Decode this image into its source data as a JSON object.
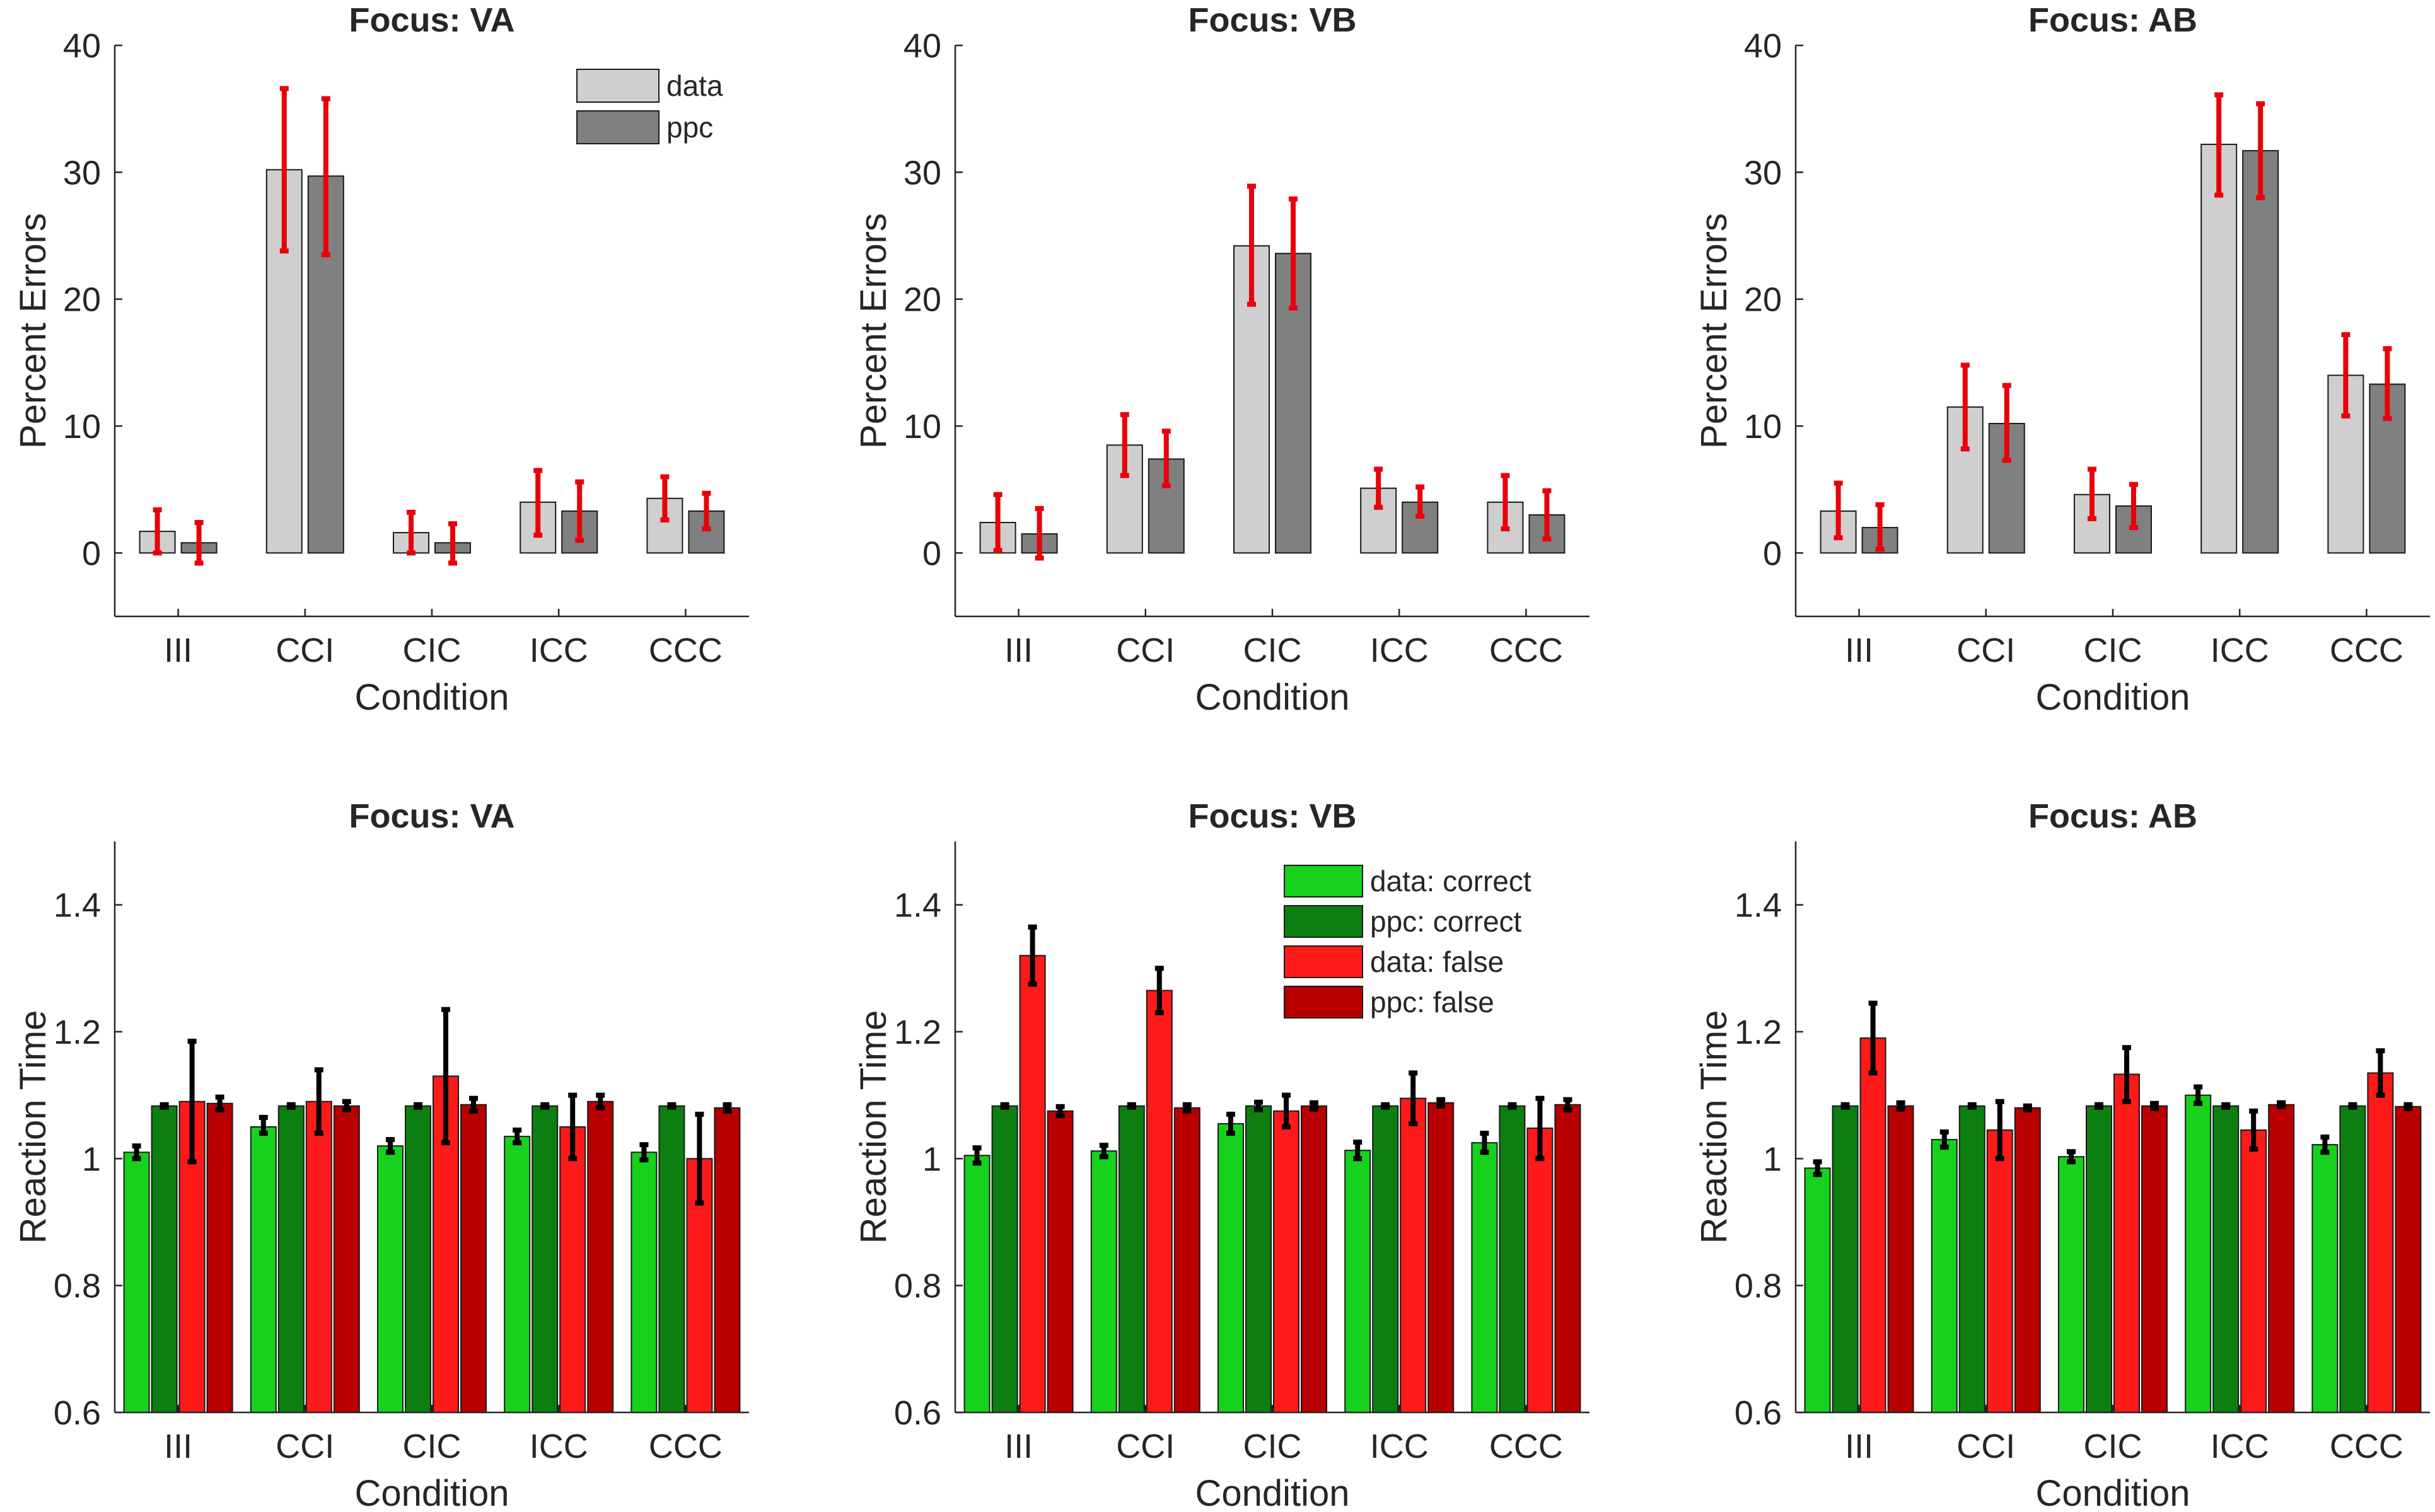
{
  "chart_data": [
    {
      "type": "bar",
      "title": "Focus: VA",
      "xlabel": "Condition",
      "ylabel": "Percent Errors",
      "ylim": [
        -5,
        40
      ],
      "yticks": [
        0,
        10,
        20,
        30,
        40
      ],
      "categories": [
        "III",
        "CCI",
        "CIC",
        "ICC",
        "CCC"
      ],
      "colors": [
        "#cfcfcf",
        "#808080"
      ],
      "error_color": "#e8000b",
      "legend": [
        "data",
        "ppc"
      ],
      "legend_position": "top-right",
      "series": [
        {
          "name": "data",
          "values": [
            1.7,
            30.2,
            1.6,
            4.0,
            4.3
          ],
          "err_low": [
            0.0,
            23.8,
            0.0,
            1.4,
            2.6
          ],
          "err_high": [
            3.4,
            36.6,
            3.2,
            6.5,
            6.0
          ]
        },
        {
          "name": "ppc",
          "values": [
            0.8,
            29.7,
            0.8,
            3.3,
            3.3
          ],
          "err_low": [
            -0.8,
            23.5,
            -0.8,
            1.0,
            1.9
          ],
          "err_high": [
            2.4,
            35.8,
            2.3,
            5.6,
            4.7
          ]
        }
      ]
    },
    {
      "type": "bar",
      "title": "Focus: VB",
      "xlabel": "Condition",
      "ylabel": "Percent Errors",
      "ylim": [
        -5,
        40
      ],
      "yticks": [
        0,
        10,
        20,
        30,
        40
      ],
      "categories": [
        "III",
        "CCI",
        "CIC",
        "ICC",
        "CCC"
      ],
      "colors": [
        "#cfcfcf",
        "#808080"
      ],
      "error_color": "#e8000b",
      "series": [
        {
          "name": "data",
          "values": [
            2.4,
            8.5,
            24.2,
            5.1,
            4.0
          ],
          "err_low": [
            0.2,
            6.1,
            19.6,
            3.6,
            1.9
          ],
          "err_high": [
            4.6,
            10.9,
            28.9,
            6.6,
            6.1
          ]
        },
        {
          "name": "ppc",
          "values": [
            1.5,
            7.4,
            23.6,
            4.0,
            3.0
          ],
          "err_low": [
            -0.4,
            5.3,
            19.3,
            2.9,
            1.1
          ],
          "err_high": [
            3.5,
            9.6,
            27.9,
            5.2,
            4.9
          ]
        }
      ]
    },
    {
      "type": "bar",
      "title": "Focus: AB",
      "xlabel": "Condition",
      "ylabel": "Percent Errors",
      "ylim": [
        -5,
        40
      ],
      "yticks": [
        0,
        10,
        20,
        30,
        40
      ],
      "categories": [
        "III",
        "CCI",
        "CIC",
        "ICC",
        "CCC"
      ],
      "colors": [
        "#cfcfcf",
        "#808080"
      ],
      "error_color": "#e8000b",
      "series": [
        {
          "name": "data",
          "values": [
            3.3,
            11.5,
            4.6,
            32.2,
            14.0
          ],
          "err_low": [
            1.2,
            8.2,
            2.7,
            28.2,
            10.8
          ],
          "err_high": [
            5.5,
            14.8,
            6.6,
            36.1,
            17.2
          ]
        },
        {
          "name": "ppc",
          "values": [
            2.0,
            10.2,
            3.7,
            31.7,
            13.3
          ],
          "err_low": [
            0.3,
            7.3,
            2.0,
            28.0,
            10.6
          ],
          "err_high": [
            3.8,
            13.2,
            5.4,
            35.4,
            16.1
          ]
        }
      ]
    },
    {
      "type": "bar",
      "title": "Focus: VA",
      "xlabel": "Condition",
      "ylabel": "Reaction Time",
      "ylim": [
        0.6,
        1.5
      ],
      "yticks": [
        0.6,
        0.8,
        1,
        1.2,
        1.4
      ],
      "categories": [
        "III",
        "CCI",
        "CIC",
        "ICC",
        "CCC"
      ],
      "colors": [
        "#16d21d",
        "#0d7f10",
        "#ff1a1a",
        "#b80000"
      ],
      "error_color": "#000000",
      "series": [
        {
          "name": "data: correct",
          "values": [
            1.01,
            1.05,
            1.02,
            1.035,
            1.01
          ],
          "err_low": [
            1.0,
            1.04,
            1.01,
            1.025,
            0.998
          ],
          "err_high": [
            1.02,
            1.065,
            1.03,
            1.045,
            1.022
          ]
        },
        {
          "name": "ppc: correct",
          "values": [
            1.083,
            1.083,
            1.083,
            1.083,
            1.083
          ],
          "err_low": [
            1.081,
            1.081,
            1.081,
            1.081,
            1.081
          ],
          "err_high": [
            1.085,
            1.085,
            1.085,
            1.085,
            1.085
          ]
        },
        {
          "name": "data: false",
          "values": [
            1.09,
            1.09,
            1.13,
            1.05,
            1.0
          ],
          "err_low": [
            0.995,
            1.04,
            1.025,
            1.0,
            0.93
          ],
          "err_high": [
            1.185,
            1.14,
            1.235,
            1.1,
            1.07
          ]
        },
        {
          "name": "ppc: false",
          "values": [
            1.087,
            1.083,
            1.085,
            1.09,
            1.08
          ],
          "err_low": [
            1.077,
            1.077,
            1.075,
            1.08,
            1.075
          ],
          "err_high": [
            1.097,
            1.09,
            1.095,
            1.1,
            1.085
          ]
        }
      ]
    },
    {
      "type": "bar",
      "title": "Focus: VB",
      "xlabel": "Condition",
      "ylabel": "Reaction Time",
      "ylim": [
        0.6,
        1.5
      ],
      "yticks": [
        0.6,
        0.8,
        1,
        1.2,
        1.4
      ],
      "categories": [
        "III",
        "CCI",
        "CIC",
        "ICC",
        "CCC"
      ],
      "colors": [
        "#16d21d",
        "#0d7f10",
        "#ff1a1a",
        "#b80000"
      ],
      "error_color": "#000000",
      "legend": [
        "data: correct",
        "ppc: correct",
        "data: false",
        "ppc: false"
      ],
      "legend_position": "top-right",
      "series": [
        {
          "name": "data: correct",
          "values": [
            1.005,
            1.012,
            1.055,
            1.013,
            1.025
          ],
          "err_low": [
            0.993,
            1.003,
            1.04,
            1.0,
            1.01
          ],
          "err_high": [
            1.017,
            1.021,
            1.07,
            1.026,
            1.04
          ]
        },
        {
          "name": "ppc: correct",
          "values": [
            1.083,
            1.083,
            1.083,
            1.083,
            1.083
          ],
          "err_low": [
            1.081,
            1.081,
            1.077,
            1.081,
            1.081
          ],
          "err_high": [
            1.085,
            1.085,
            1.089,
            1.085,
            1.085
          ]
        },
        {
          "name": "data: false",
          "values": [
            1.32,
            1.265,
            1.075,
            1.095,
            1.048
          ],
          "err_low": [
            1.275,
            1.23,
            1.05,
            1.055,
            1.0
          ],
          "err_high": [
            1.365,
            1.3,
            1.1,
            1.135,
            1.095
          ]
        },
        {
          "name": "ppc: false",
          "values": [
            1.075,
            1.08,
            1.083,
            1.088,
            1.085
          ],
          "err_low": [
            1.068,
            1.075,
            1.078,
            1.083,
            1.077
          ],
          "err_high": [
            1.082,
            1.085,
            1.088,
            1.093,
            1.093
          ]
        }
      ]
    },
    {
      "type": "bar",
      "title": "Focus: AB",
      "xlabel": "Condition",
      "ylabel": "Reaction Time",
      "ylim": [
        0.6,
        1.5
      ],
      "yticks": [
        0.6,
        0.8,
        1,
        1.2,
        1.4
      ],
      "categories": [
        "III",
        "CCI",
        "CIC",
        "ICC",
        "CCC"
      ],
      "colors": [
        "#16d21d",
        "#0d7f10",
        "#ff1a1a",
        "#b80000"
      ],
      "error_color": "#000000",
      "series": [
        {
          "name": "data: correct",
          "values": [
            0.985,
            1.03,
            1.003,
            1.1,
            1.022
          ],
          "err_low": [
            0.975,
            1.018,
            0.995,
            1.087,
            1.01
          ],
          "err_high": [
            0.995,
            1.042,
            1.011,
            1.113,
            1.034
          ]
        },
        {
          "name": "ppc: correct",
          "values": [
            1.083,
            1.083,
            1.083,
            1.083,
            1.083
          ],
          "err_low": [
            1.081,
            1.081,
            1.081,
            1.081,
            1.081
          ],
          "err_high": [
            1.085,
            1.085,
            1.085,
            1.085,
            1.085
          ]
        },
        {
          "name": "data: false",
          "values": [
            1.19,
            1.045,
            1.133,
            1.045,
            1.135
          ],
          "err_low": [
            1.135,
            1.0,
            1.09,
            1.015,
            1.1
          ],
          "err_high": [
            1.245,
            1.09,
            1.175,
            1.075,
            1.17
          ]
        },
        {
          "name": "ppc: false",
          "values": [
            1.083,
            1.08,
            1.083,
            1.085,
            1.082
          ],
          "err_low": [
            1.078,
            1.077,
            1.079,
            1.082,
            1.079
          ],
          "err_high": [
            1.088,
            1.083,
            1.087,
            1.088,
            1.085
          ]
        }
      ]
    }
  ]
}
